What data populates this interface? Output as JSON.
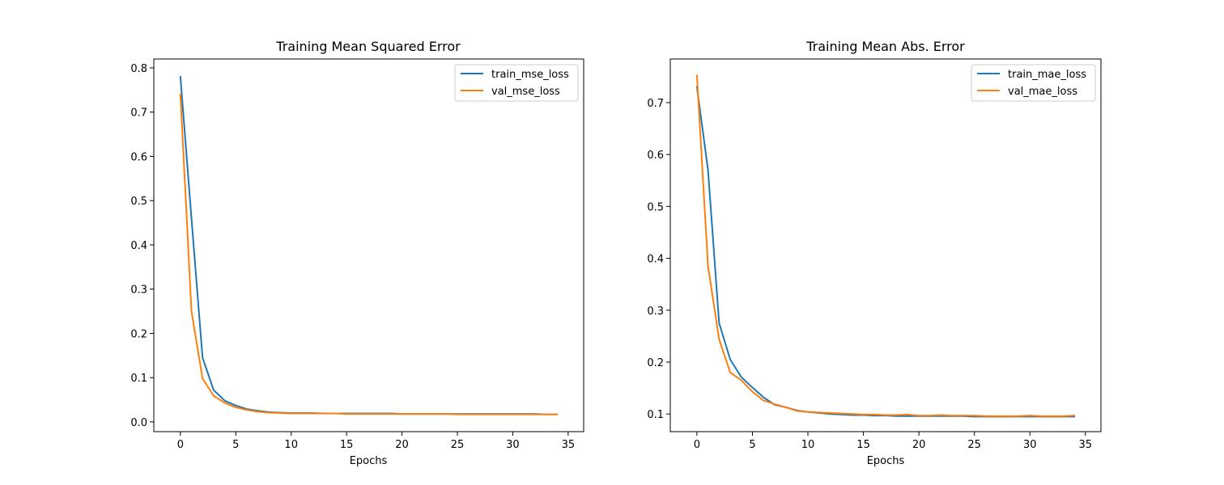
{
  "chart_data": [
    {
      "type": "line",
      "title": "Training Mean Squared Error",
      "xlabel": "Epochs",
      "ylabel": "",
      "xlim": [
        -2.4,
        36.4
      ],
      "ylim": [
        -0.022,
        0.82
      ],
      "xticks": [
        0,
        5,
        10,
        15,
        20,
        25,
        30,
        35
      ],
      "yticks": [
        0.0,
        0.1,
        0.2,
        0.3,
        0.4,
        0.5,
        0.6,
        0.7,
        0.8
      ],
      "yticks_labels": [
        "0.0",
        "0.1",
        "0.2",
        "0.3",
        "0.4",
        "0.5",
        "0.6",
        "0.7",
        "0.8"
      ],
      "grid": false,
      "legend_position": "upper-right",
      "x": [
        0,
        1,
        2,
        3,
        4,
        5,
        6,
        7,
        8,
        9,
        10,
        11,
        12,
        13,
        14,
        15,
        16,
        17,
        18,
        19,
        20,
        21,
        22,
        23,
        24,
        25,
        26,
        27,
        28,
        29,
        30,
        31,
        32,
        33,
        34
      ],
      "series": [
        {
          "name": "train_mse_loss",
          "color": "#1f77b4",
          "values": [
            0.78,
            0.46,
            0.145,
            0.072,
            0.048,
            0.037,
            0.029,
            0.025,
            0.022,
            0.021,
            0.02,
            0.02,
            0.02,
            0.019,
            0.019,
            0.019,
            0.019,
            0.019,
            0.019,
            0.019,
            0.018,
            0.018,
            0.018,
            0.018,
            0.018,
            0.018,
            0.018,
            0.018,
            0.018,
            0.018,
            0.018,
            0.018,
            0.018,
            0.017,
            0.017
          ]
        },
        {
          "name": "val_mse_loss",
          "color": "#ff7f0e",
          "values": [
            0.74,
            0.25,
            0.098,
            0.059,
            0.043,
            0.033,
            0.027,
            0.023,
            0.021,
            0.02,
            0.019,
            0.019,
            0.019,
            0.019,
            0.019,
            0.018,
            0.018,
            0.018,
            0.018,
            0.018,
            0.018,
            0.018,
            0.018,
            0.018,
            0.018,
            0.017,
            0.017,
            0.017,
            0.017,
            0.017,
            0.017,
            0.017,
            0.017,
            0.017,
            0.017
          ]
        }
      ]
    },
    {
      "type": "line",
      "title": "Training Mean Abs. Error",
      "xlabel": "Epochs",
      "ylabel": "",
      "xlim": [
        -2.4,
        36.4
      ],
      "ylim": [
        0.066,
        0.784
      ],
      "xticks": [
        0,
        5,
        10,
        15,
        20,
        25,
        30,
        35
      ],
      "yticks": [
        0.1,
        0.2,
        0.3,
        0.4,
        0.5,
        0.6,
        0.7
      ],
      "yticks_labels": [
        "0.1",
        "0.2",
        "0.3",
        "0.4",
        "0.5",
        "0.6",
        "0.7"
      ],
      "grid": false,
      "legend_position": "upper-right",
      "x": [
        0,
        1,
        2,
        3,
        4,
        5,
        6,
        7,
        8,
        9,
        10,
        11,
        12,
        13,
        14,
        15,
        16,
        17,
        18,
        19,
        20,
        21,
        22,
        23,
        24,
        25,
        26,
        27,
        28,
        29,
        30,
        31,
        32,
        33,
        34
      ],
      "series": [
        {
          "name": "train_mae_loss",
          "color": "#1f77b4",
          "values": [
            0.73,
            0.57,
            0.275,
            0.205,
            0.171,
            0.151,
            0.132,
            0.118,
            0.113,
            0.107,
            0.104,
            0.102,
            0.1,
            0.099,
            0.098,
            0.098,
            0.097,
            0.097,
            0.096,
            0.096,
            0.096,
            0.096,
            0.096,
            0.096,
            0.096,
            0.095,
            0.095,
            0.095,
            0.095,
            0.095,
            0.095,
            0.095,
            0.095,
            0.095,
            0.095
          ]
        },
        {
          "name": "val_mae_loss",
          "color": "#ff7f0e",
          "values": [
            0.752,
            0.385,
            0.244,
            0.18,
            0.165,
            0.143,
            0.126,
            0.119,
            0.113,
            0.106,
            0.104,
            0.103,
            0.102,
            0.101,
            0.1,
            0.099,
            0.099,
            0.098,
            0.098,
            0.099,
            0.097,
            0.097,
            0.098,
            0.097,
            0.097,
            0.097,
            0.096,
            0.096,
            0.096,
            0.096,
            0.097,
            0.096,
            0.096,
            0.096,
            0.097
          ]
        }
      ]
    }
  ]
}
